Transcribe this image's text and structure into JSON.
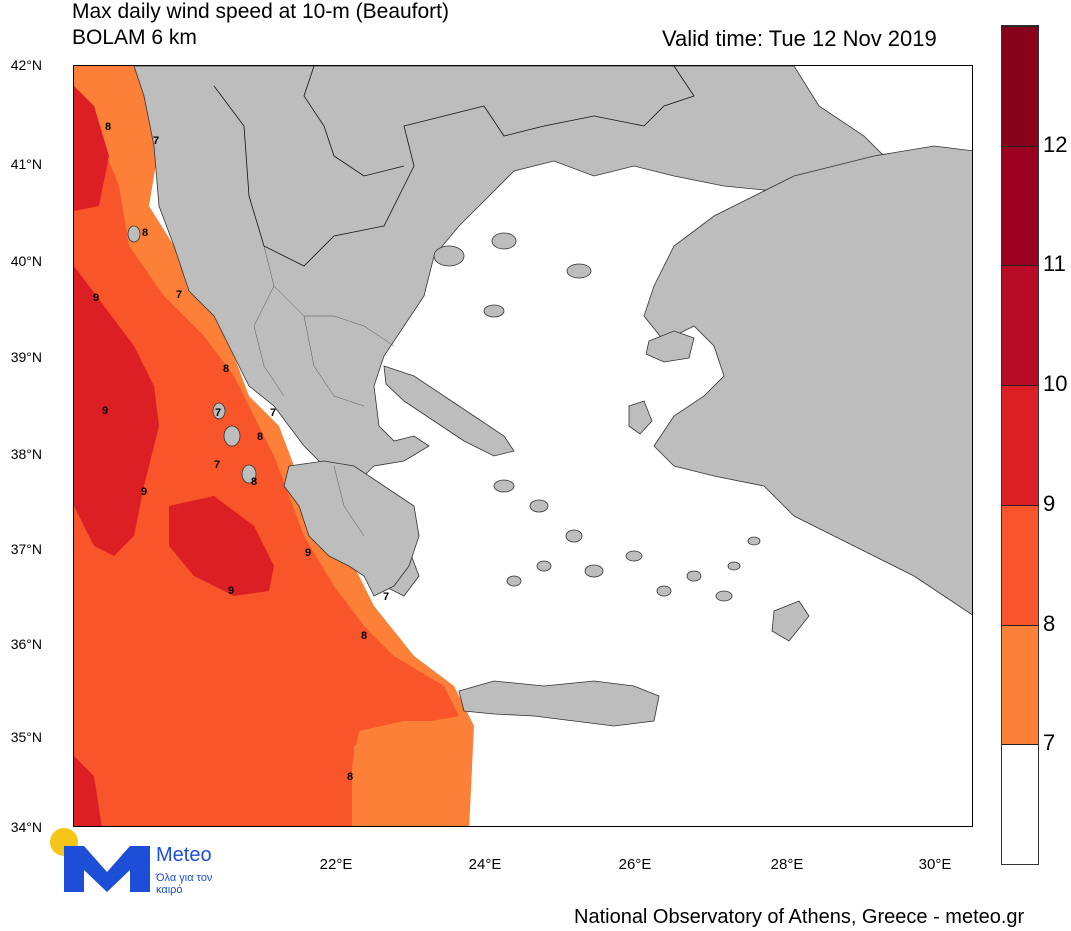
{
  "title": {
    "line1": "Max daily wind speed at 10-m (Beaufort)",
    "line2": "BOLAM 6 km",
    "valid_time": "Valid time: Tue 12 Nov 2019"
  },
  "axes": {
    "lat_labels": [
      "42°N",
      "41°N",
      "40°N",
      "39°N",
      "38°N",
      "37°N",
      "36°N",
      "35°N",
      "34°N"
    ],
    "lon_labels": [
      "22°E",
      "24°E",
      "26°E",
      "28°E",
      "30°E"
    ]
  },
  "colorbar": {
    "levels": [
      "7",
      "8",
      "9",
      "10",
      "11",
      "12"
    ],
    "colors": [
      "#ffffff",
      "#fd8038",
      "#f8552b",
      "#dc1f25",
      "#b80b26",
      "#9c0020",
      "#87001c"
    ]
  },
  "map_colors": {
    "land": "#bdbdbd",
    "sea_calm": "#ffffff",
    "beaufort_8": "#fd8038",
    "beaufort_9": "#f8552b",
    "beaufort_10": "#dc1f25"
  },
  "contour_labels": [
    "8",
    "7",
    "8",
    "9",
    "7",
    "8",
    "9",
    "7",
    "8",
    "9",
    "8",
    "9",
    "9",
    "7",
    "7",
    "8",
    "8",
    "7"
  ],
  "logo": {
    "name": "Meteo",
    "tagline": "Όλα για τον καιρό"
  },
  "credit": "National Observatory of Athens, Greece - meteo.gr"
}
